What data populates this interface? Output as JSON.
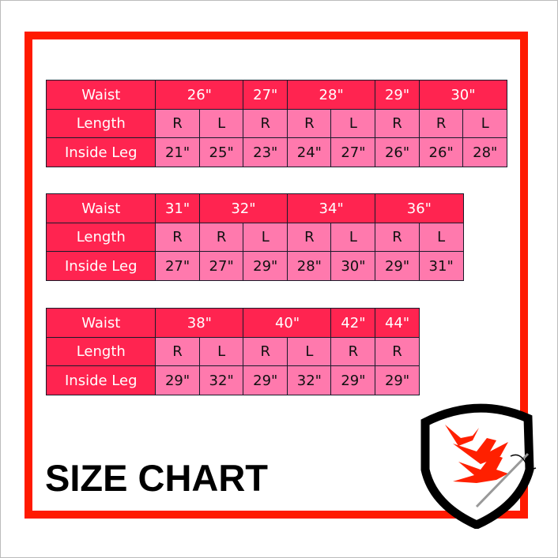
{
  "row_labels": {
    "waist": "Waist",
    "length": "Length",
    "inside_leg": "Inside Leg"
  },
  "tables": [
    {
      "waist": [
        {
          "label": "26\"",
          "span": 2
        },
        {
          "label": "27\"",
          "span": 1
        },
        {
          "label": "28\"",
          "span": 2
        },
        {
          "label": "29\"",
          "span": 1
        },
        {
          "label": "30\"",
          "span": 2
        }
      ],
      "length": [
        "R",
        "L",
        "R",
        "R",
        "L",
        "R",
        "R",
        "L"
      ],
      "inside_leg": [
        "21\"",
        "25\"",
        "23\"",
        "24\"",
        "27\"",
        "26\"",
        "26\"",
        "28\""
      ]
    },
    {
      "waist": [
        {
          "label": "31\"",
          "span": 1
        },
        {
          "label": "32\"",
          "span": 2
        },
        {
          "label": "34\"",
          "span": 2
        },
        {
          "label": "36\"",
          "span": 2
        }
      ],
      "length": [
        "R",
        "R",
        "L",
        "R",
        "L",
        "R",
        "L"
      ],
      "inside_leg": [
        "27\"",
        "27\"",
        "29\"",
        "28\"",
        "30\"",
        "29\"",
        "31\""
      ]
    },
    {
      "waist": [
        {
          "label": "38\"",
          "span": 2
        },
        {
          "label": "40\"",
          "span": 2
        },
        {
          "label": "42\"",
          "span": 1
        },
        {
          "label": "44\"",
          "span": 1
        }
      ],
      "length": [
        "R",
        "L",
        "R",
        "L",
        "R",
        "R"
      ],
      "inside_leg": [
        "29\"",
        "32\"",
        "29\"",
        "32\"",
        "29\"",
        "29\""
      ]
    }
  ],
  "title": "SIZE CHART",
  "colors": {
    "frame": "#ff1a00",
    "header": "#ff2450",
    "cell": "#ff79ad",
    "logo_red": "#ff2000"
  },
  "logo": {
    "icon": "shield-birds-needle-icon"
  }
}
